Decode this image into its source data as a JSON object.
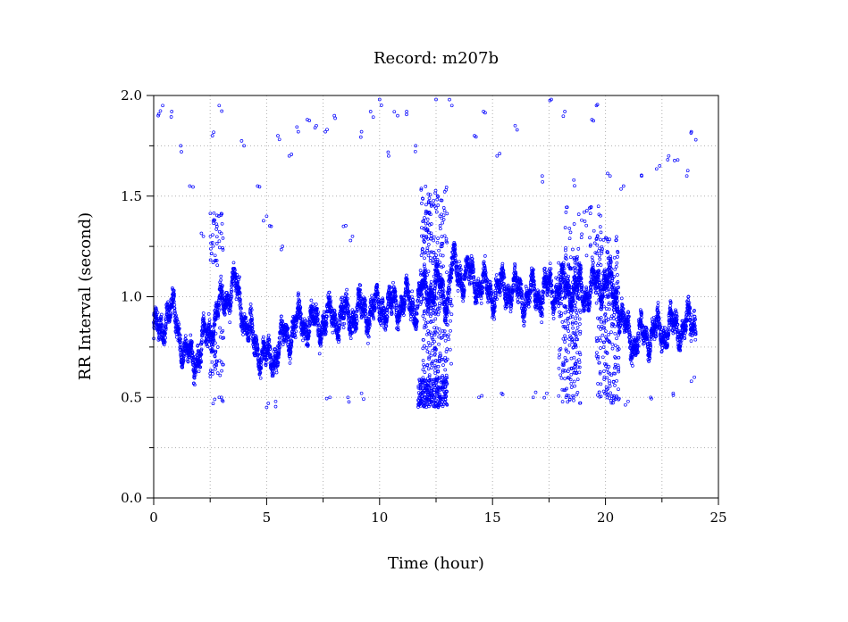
{
  "chart_data": {
    "type": "scatter",
    "title": "Record:  m207b",
    "xlabel": "Time (hour)",
    "ylabel": "RR Interval (second)",
    "xlim": [
      0,
      25
    ],
    "ylim": [
      0,
      2
    ],
    "xticks": [
      0,
      5,
      10,
      15,
      20,
      25
    ],
    "xtick_labels": [
      "0",
      "5",
      "10",
      "15",
      "20",
      "25"
    ],
    "yticks": [
      0,
      0.5,
      1,
      1.5,
      2
    ],
    "ytick_labels": [
      "0.0",
      "0.5",
      "1.0",
      "1.5",
      "2.0"
    ],
    "grid": true,
    "marker_color": "#0000ff",
    "series": [
      {
        "trend": [
          [
            0.0,
            0.85
          ],
          [
            0.3,
            0.8
          ],
          [
            0.6,
            0.95
          ],
          [
            1.0,
            0.88
          ],
          [
            1.3,
            0.75
          ],
          [
            1.6,
            0.68
          ],
          [
            2.0,
            0.72
          ],
          [
            2.4,
            0.82
          ],
          [
            2.8,
            0.92
          ],
          [
            3.2,
            1.0
          ],
          [
            3.6,
            1.05
          ],
          [
            3.9,
            0.95
          ],
          [
            4.2,
            0.82
          ],
          [
            4.6,
            0.75
          ],
          [
            5.0,
            0.68
          ],
          [
            5.4,
            0.72
          ],
          [
            5.8,
            0.8
          ],
          [
            6.2,
            0.85
          ],
          [
            6.6,
            0.88
          ],
          [
            7.0,
            0.86
          ],
          [
            7.5,
            0.88
          ],
          [
            8.0,
            0.9
          ],
          [
            8.5,
            0.9
          ],
          [
            9.0,
            0.92
          ],
          [
            9.5,
            0.93
          ],
          [
            10.0,
            0.95
          ],
          [
            10.5,
            0.95
          ],
          [
            11.0,
            0.98
          ],
          [
            11.5,
            0.95
          ],
          [
            11.8,
            1.0
          ],
          [
            12.2,
            1.05
          ],
          [
            12.6,
            1.05
          ],
          [
            13.0,
            1.0
          ],
          [
            13.2,
            1.15
          ],
          [
            13.6,
            1.12
          ],
          [
            14.0,
            1.1
          ],
          [
            14.5,
            1.05
          ],
          [
            15.0,
            1.02
          ],
          [
            15.5,
            1.05
          ],
          [
            16.0,
            1.03
          ],
          [
            16.5,
            1.0
          ],
          [
            17.0,
            1.02
          ],
          [
            17.5,
            1.03
          ],
          [
            18.0,
            1.05
          ],
          [
            18.5,
            1.05
          ],
          [
            19.0,
            1.02
          ],
          [
            19.5,
            1.05
          ],
          [
            20.0,
            1.08
          ],
          [
            20.5,
            1.0
          ],
          [
            20.8,
            0.85
          ],
          [
            21.2,
            0.78
          ],
          [
            21.6,
            0.8
          ],
          [
            22.0,
            0.82
          ],
          [
            22.5,
            0.83
          ],
          [
            23.0,
            0.85
          ],
          [
            23.5,
            0.85
          ],
          [
            24.0,
            0.88
          ]
        ],
        "outliers": [
          [
            0.2,
            1.9
          ],
          [
            0.4,
            1.95
          ],
          [
            0.8,
            1.92
          ],
          [
            1.2,
            1.75
          ],
          [
            1.6,
            1.55
          ],
          [
            2.2,
            1.3
          ],
          [
            2.6,
            1.8
          ],
          [
            2.7,
            1.38
          ],
          [
            2.8,
            1.35
          ],
          [
            2.9,
            1.95
          ],
          [
            3.0,
            0.5
          ],
          [
            2.7,
            0.49
          ],
          [
            2.9,
            0.5
          ],
          [
            4.0,
            1.75
          ],
          [
            4.6,
            1.55
          ],
          [
            5.0,
            1.4
          ],
          [
            5.2,
            1.35
          ],
          [
            5.5,
            1.8
          ],
          [
            5.7,
            1.25
          ],
          [
            6.0,
            1.7
          ],
          [
            6.4,
            1.82
          ],
          [
            6.8,
            1.88
          ],
          [
            7.2,
            1.85
          ],
          [
            7.6,
            1.82
          ],
          [
            8.0,
            1.9
          ],
          [
            8.4,
            1.35
          ],
          [
            8.8,
            1.3
          ],
          [
            9.2,
            1.82
          ],
          [
            9.6,
            1.92
          ],
          [
            10.0,
            1.98
          ],
          [
            10.4,
            1.7
          ],
          [
            10.8,
            1.9
          ],
          [
            11.2,
            1.92
          ],
          [
            11.6,
            1.75
          ],
          [
            5.0,
            0.45
          ],
          [
            5.4,
            0.48
          ],
          [
            7.8,
            0.5
          ],
          [
            8.6,
            0.5
          ],
          [
            9.2,
            0.52
          ],
          [
            12.5,
            1.98
          ],
          [
            13.2,
            1.95
          ],
          [
            14.2,
            1.8
          ],
          [
            14.6,
            1.92
          ],
          [
            15.2,
            1.7
          ],
          [
            16.0,
            1.85
          ],
          [
            17.2,
            1.6
          ],
          [
            17.6,
            1.98
          ],
          [
            18.2,
            1.92
          ],
          [
            18.6,
            1.58
          ],
          [
            19.4,
            1.88
          ],
          [
            19.6,
            1.95
          ],
          [
            20.2,
            1.6
          ],
          [
            20.8,
            1.55
          ],
          [
            21.6,
            1.6
          ],
          [
            22.4,
            1.65
          ],
          [
            22.8,
            1.7
          ],
          [
            23.2,
            1.68
          ],
          [
            23.6,
            1.6
          ],
          [
            23.8,
            1.82
          ],
          [
            24.0,
            1.78
          ],
          [
            14.4,
            0.5
          ],
          [
            15.4,
            0.52
          ],
          [
            16.8,
            0.5
          ],
          [
            17.4,
            0.52
          ],
          [
            18.5,
            0.55
          ],
          [
            20.5,
            0.5
          ],
          [
            21.0,
            0.48
          ],
          [
            22.0,
            0.5
          ],
          [
            23.0,
            0.52
          ],
          [
            23.8,
            0.58
          ]
        ],
        "clusters": [
          {
            "x": [
              11.7,
              13.0
            ],
            "y": [
              0.45,
              0.6
            ],
            "n": 260
          },
          {
            "x": [
              11.8,
              13.0
            ],
            "y": [
              1.1,
              1.55
            ],
            "n": 140
          },
          {
            "x": [
              11.9,
              13.2
            ],
            "y": [
              0.6,
              1.0
            ],
            "n": 160
          },
          {
            "x": [
              17.9,
              18.9
            ],
            "y": [
              0.47,
              1.2
            ],
            "n": 220
          },
          {
            "x": [
              19.6,
              20.6
            ],
            "y": [
              0.47,
              1.3
            ],
            "n": 220
          },
          {
            "x": [
              18.2,
              19.8
            ],
            "y": [
              1.2,
              1.45
            ],
            "n": 40
          },
          {
            "x": [
              2.5,
              3.1
            ],
            "y": [
              0.6,
              0.85
            ],
            "n": 40
          },
          {
            "x": [
              2.5,
              3.1
            ],
            "y": [
              1.15,
              1.42
            ],
            "n": 35
          }
        ]
      }
    ]
  }
}
